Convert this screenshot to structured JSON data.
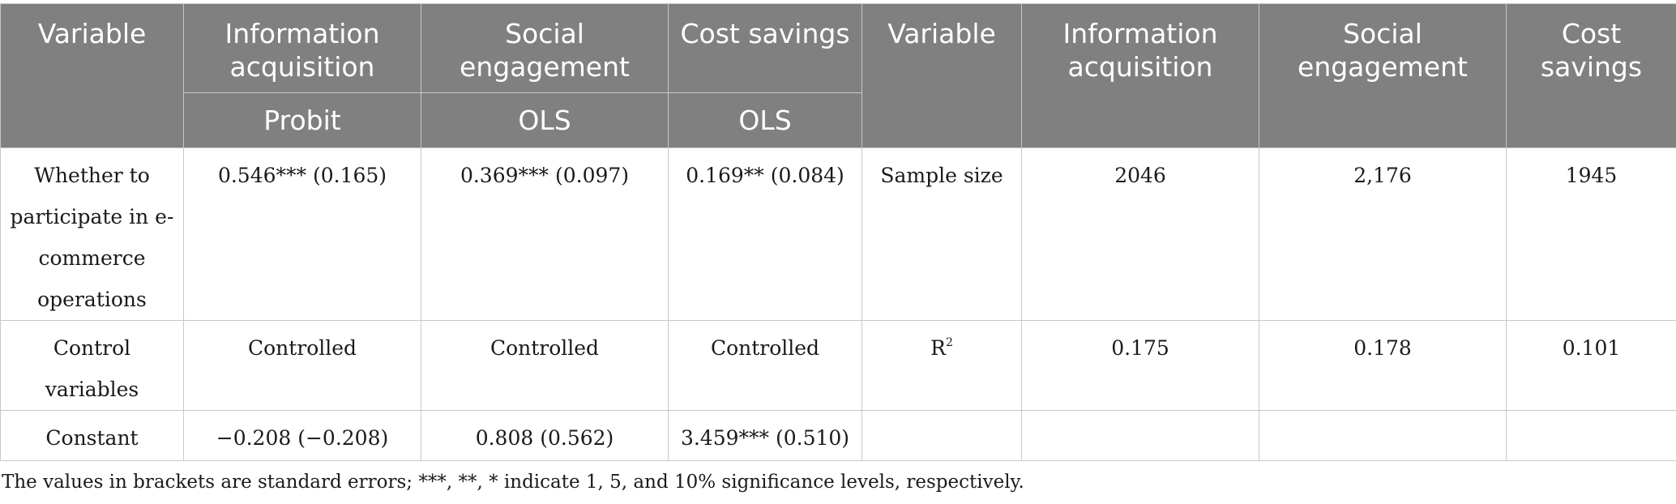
{
  "header": {
    "col1": "Variable",
    "col2": "Information acquisition",
    "col3": "Social engagement",
    "col4": "Cost savings",
    "col5": "Variable",
    "col6": "Information acquisition",
    "col7": "Social engagement",
    "col8": "Cost savings",
    "sub2": "Probit",
    "sub3": "OLS",
    "sub4": "OLS"
  },
  "rows": [
    {
      "variable": "Whether to participate in e-commerce operations",
      "info": "0.546*** (0.165)",
      "social": "0.369*** (0.097)",
      "cost": "0.169** (0.084)",
      "stat_label": "Sample size",
      "stat_info": "2046",
      "stat_social": "2,176",
      "stat_cost": "1945"
    },
    {
      "variable": "Control variables",
      "info": "Controlled",
      "social": "Controlled",
      "cost": "Controlled",
      "stat_label": "R",
      "stat_label_sup": "2",
      "stat_info": "0.175",
      "stat_social": "0.178",
      "stat_cost": "0.101"
    },
    {
      "variable": "Constant",
      "info": "−0.208 (−0.208)",
      "social": "0.808 (0.562)",
      "cost": "3.459*** (0.510)",
      "stat_label": "",
      "stat_info": "",
      "stat_social": "",
      "stat_cost": ""
    }
  ],
  "footnote": "The values in brackets are standard errors; ***, **, * indicate 1, 5, and 10% significance levels, respectively."
}
